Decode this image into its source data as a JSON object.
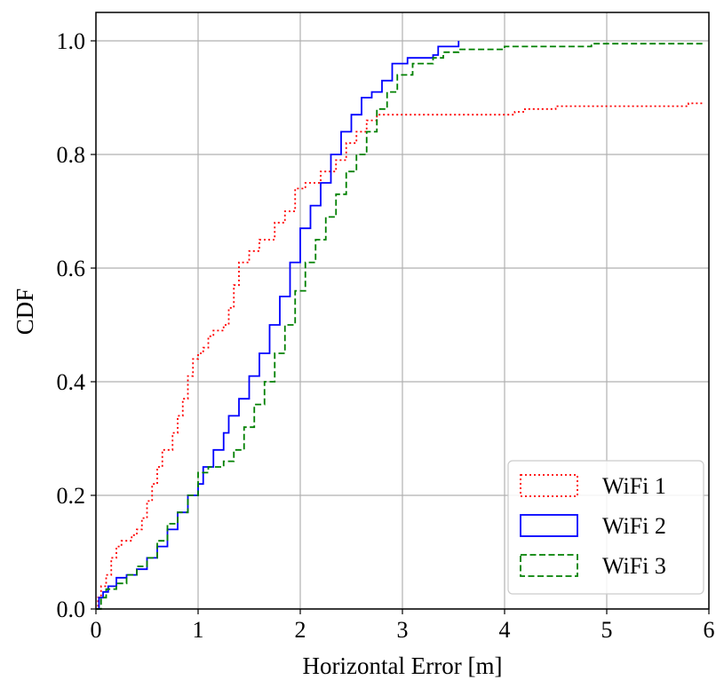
{
  "chart_data": {
    "type": "line",
    "title": "",
    "xlabel": "Horizontal Error [m]",
    "ylabel": "CDF",
    "xlim": [
      0,
      6
    ],
    "ylim": [
      0,
      1.05
    ],
    "xticks": [
      0,
      1,
      2,
      3,
      4,
      5,
      6
    ],
    "yticks": [
      0.0,
      0.2,
      0.4,
      0.6,
      0.8,
      1.0
    ],
    "xtick_labels": [
      "0",
      "1",
      "2",
      "3",
      "4",
      "5",
      "6"
    ],
    "ytick_labels": [
      "0.0",
      "0.2",
      "0.4",
      "0.6",
      "0.8",
      "1.0"
    ],
    "grid": true,
    "legend_position": "bottom-right",
    "series": [
      {
        "name": "WiFi 1",
        "color": "#ff0000",
        "style": "dotted",
        "step": true,
        "points": [
          [
            0,
            0
          ],
          [
            0.02,
            0.02
          ],
          [
            0.05,
            0.04
          ],
          [
            0.1,
            0.06
          ],
          [
            0.15,
            0.09
          ],
          [
            0.2,
            0.11
          ],
          [
            0.25,
            0.12
          ],
          [
            0.35,
            0.13
          ],
          [
            0.4,
            0.14
          ],
          [
            0.45,
            0.16
          ],
          [
            0.5,
            0.19
          ],
          [
            0.55,
            0.22
          ],
          [
            0.6,
            0.25
          ],
          [
            0.65,
            0.28
          ],
          [
            0.75,
            0.31
          ],
          [
            0.8,
            0.34
          ],
          [
            0.85,
            0.37
          ],
          [
            0.9,
            0.41
          ],
          [
            0.95,
            0.44
          ],
          [
            1.0,
            0.45
          ],
          [
            1.05,
            0.46
          ],
          [
            1.1,
            0.48
          ],
          [
            1.15,
            0.49
          ],
          [
            1.25,
            0.5
          ],
          [
            1.3,
            0.53
          ],
          [
            1.35,
            0.57
          ],
          [
            1.4,
            0.61
          ],
          [
            1.5,
            0.63
          ],
          [
            1.6,
            0.65
          ],
          [
            1.75,
            0.68
          ],
          [
            1.85,
            0.7
          ],
          [
            1.95,
            0.74
          ],
          [
            2.05,
            0.75
          ],
          [
            2.2,
            0.77
          ],
          [
            2.35,
            0.79
          ],
          [
            2.45,
            0.82
          ],
          [
            2.55,
            0.84
          ],
          [
            2.65,
            0.86
          ],
          [
            2.75,
            0.87
          ],
          [
            4.1,
            0.875
          ],
          [
            4.2,
            0.88
          ],
          [
            4.5,
            0.885
          ],
          [
            5.8,
            0.89
          ],
          [
            5.95,
            0.89
          ]
        ]
      },
      {
        "name": "WiFi 2",
        "color": "#0000ff",
        "style": "solid",
        "step": true,
        "points": [
          [
            0,
            0
          ],
          [
            0.03,
            0.02
          ],
          [
            0.07,
            0.03
          ],
          [
            0.12,
            0.04
          ],
          [
            0.2,
            0.055
          ],
          [
            0.3,
            0.06
          ],
          [
            0.4,
            0.07
          ],
          [
            0.5,
            0.09
          ],
          [
            0.6,
            0.11
          ],
          [
            0.7,
            0.14
          ],
          [
            0.8,
            0.17
          ],
          [
            0.9,
            0.2
          ],
          [
            1.0,
            0.22
          ],
          [
            1.05,
            0.25
          ],
          [
            1.15,
            0.28
          ],
          [
            1.25,
            0.31
          ],
          [
            1.3,
            0.34
          ],
          [
            1.4,
            0.37
          ],
          [
            1.5,
            0.41
          ],
          [
            1.6,
            0.45
          ],
          [
            1.7,
            0.5
          ],
          [
            1.8,
            0.55
          ],
          [
            1.9,
            0.61
          ],
          [
            2.0,
            0.67
          ],
          [
            2.1,
            0.71
          ],
          [
            2.2,
            0.75
          ],
          [
            2.3,
            0.8
          ],
          [
            2.4,
            0.84
          ],
          [
            2.5,
            0.87
          ],
          [
            2.6,
            0.9
          ],
          [
            2.7,
            0.91
          ],
          [
            2.8,
            0.93
          ],
          [
            2.9,
            0.96
          ],
          [
            3.05,
            0.97
          ],
          [
            3.3,
            0.975
          ],
          [
            3.35,
            0.99
          ],
          [
            3.55,
            1.0
          ]
        ]
      },
      {
        "name": "WiFi 3",
        "color": "#008000",
        "style": "dashed",
        "step": true,
        "points": [
          [
            0,
            0
          ],
          [
            0.05,
            0.02
          ],
          [
            0.1,
            0.035
          ],
          [
            0.2,
            0.045
          ],
          [
            0.3,
            0.06
          ],
          [
            0.4,
            0.075
          ],
          [
            0.5,
            0.09
          ],
          [
            0.6,
            0.12
          ],
          [
            0.7,
            0.15
          ],
          [
            0.8,
            0.17
          ],
          [
            0.9,
            0.2
          ],
          [
            1.0,
            0.24
          ],
          [
            1.1,
            0.25
          ],
          [
            1.25,
            0.26
          ],
          [
            1.35,
            0.28
          ],
          [
            1.45,
            0.32
          ],
          [
            1.55,
            0.36
          ],
          [
            1.65,
            0.4
          ],
          [
            1.75,
            0.45
          ],
          [
            1.85,
            0.5
          ],
          [
            1.95,
            0.56
          ],
          [
            2.05,
            0.61
          ],
          [
            2.15,
            0.65
          ],
          [
            2.25,
            0.69
          ],
          [
            2.35,
            0.73
          ],
          [
            2.45,
            0.77
          ],
          [
            2.55,
            0.8
          ],
          [
            2.65,
            0.84
          ],
          [
            2.75,
            0.88
          ],
          [
            2.85,
            0.91
          ],
          [
            2.95,
            0.94
          ],
          [
            3.1,
            0.96
          ],
          [
            3.3,
            0.97
          ],
          [
            3.4,
            0.98
          ],
          [
            3.55,
            0.985
          ],
          [
            4.0,
            0.99
          ],
          [
            4.85,
            0.995
          ],
          [
            5.95,
            0.995
          ]
        ]
      }
    ]
  }
}
